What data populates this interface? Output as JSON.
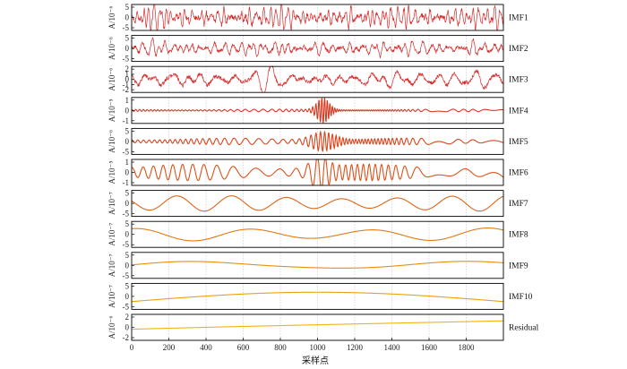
{
  "chart_data": {
    "type": "line",
    "xlabel": "采样点",
    "xlim": [
      0,
      2000
    ],
    "x_ticks": [
      "0",
      "200",
      "400",
      "600",
      "800",
      "1000",
      "1200",
      "1400",
      "1600",
      "1800"
    ],
    "grid": true,
    "panels": [
      {
        "label": "IMF1",
        "ylabel": "A/10⁻⁶",
        "ylim": [
          -5,
          5
        ],
        "yticks": [
          "5",
          "0",
          "-5"
        ],
        "color": "#d62a2a",
        "shape": {
          "kind": "noise",
          "amp": 3.6,
          "freq": 70
        }
      },
      {
        "label": "IMF2",
        "ylabel": "A/10⁻⁶",
        "ylim": [
          -5,
          5
        ],
        "yticks": [
          "5",
          "0",
          "-5"
        ],
        "color": "#d62a2a",
        "shape": {
          "kind": "noise",
          "amp": 2.6,
          "freq": 45
        }
      },
      {
        "label": "IMF3",
        "ylabel": "A/10⁻⁶",
        "ylim": [
          -2,
          2
        ],
        "yticks": [
          "2",
          "1",
          "0",
          "-1",
          "-2"
        ],
        "color": "#d62a2a",
        "shape": {
          "kind": "noise",
          "amp": 1.2,
          "freq": 22
        }
      },
      {
        "label": "IMF4",
        "ylabel": "A/10⁻⁵",
        "ylim": [
          -1,
          1
        ],
        "yticks": [
          "1",
          "0",
          "-1"
        ],
        "color": "#d53a22",
        "shape": {
          "kind": "burst",
          "amp": 0.07,
          "burst": 0.95,
          "center": 1030,
          "width": 45,
          "freq": 9
        }
      },
      {
        "label": "IMF5",
        "ylabel": "A/10⁻⁶",
        "ylim": [
          -5,
          5
        ],
        "yticks": [
          "5",
          "0",
          "-5"
        ],
        "color": "#d8461e",
        "shape": {
          "kind": "burst",
          "amp": 0.9,
          "burst": 3.2,
          "center": 1030,
          "width": 90,
          "freq": 6
        }
      },
      {
        "label": "IMF6",
        "ylabel": "A/10⁻⁵",
        "ylim": [
          -1,
          1
        ],
        "yticks": [
          "1",
          "0",
          "-1"
        ],
        "color": "#db521a",
        "shape": {
          "kind": "burst",
          "amp": 0.45,
          "burst": 0.95,
          "center": 1010,
          "width": 60,
          "freq": 3.2
        }
      },
      {
        "label": "IMF7",
        "ylabel": "A/10⁻⁷",
        "ylim": [
          -5,
          5
        ],
        "yticks": [
          "5",
          "0",
          "-5"
        ],
        "color": "#de6516",
        "shape": {
          "kind": "sine",
          "amp": 3.0,
          "freq": 1.5
        }
      },
      {
        "label": "IMF8",
        "ylabel": "A/10⁻⁷",
        "ylim": [
          -5,
          5
        ],
        "yticks": [
          "5",
          "0",
          "-5"
        ],
        "color": "#e27a12",
        "shape": {
          "kind": "sine",
          "amp": 2.5,
          "freq": 0.7
        }
      },
      {
        "label": "IMF9",
        "ylabel": "A/10⁻⁷",
        "ylim": [
          -5,
          5
        ],
        "yticks": [
          "5",
          "0",
          "-5"
        ],
        "color": "#e68e10",
        "shape": {
          "kind": "sine",
          "amp": 1.6,
          "freq": 0.3
        }
      },
      {
        "label": "IMF10",
        "ylabel": "A/10⁻⁷",
        "ylim": [
          -5,
          5
        ],
        "yticks": [
          "5",
          "0",
          "-5"
        ],
        "color": "#eba00f",
        "shape": {
          "kind": "hump",
          "amp": 4.0
        }
      },
      {
        "label": "Residual",
        "ylabel": "A/10⁻⁶",
        "ylim": [
          -2,
          2
        ],
        "yticks": [
          "2",
          "0",
          "-2"
        ],
        "color": "#efb40f",
        "shape": {
          "kind": "trend",
          "start": -0.3,
          "end": 1.0
        }
      }
    ]
  }
}
